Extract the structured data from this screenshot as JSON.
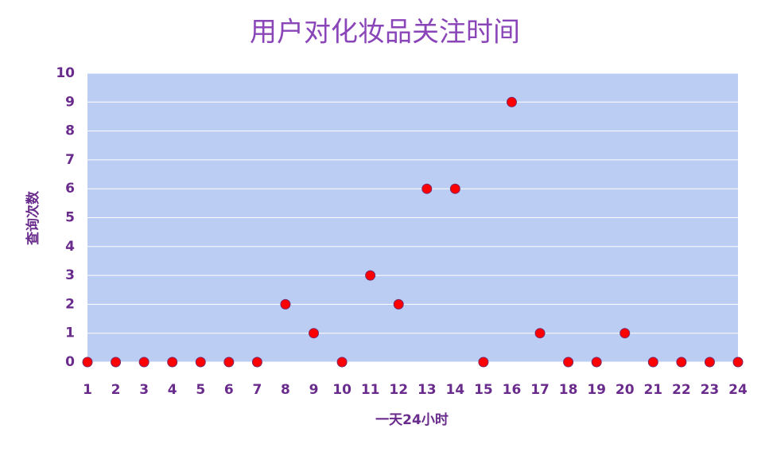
{
  "chart_data": {
    "type": "scatter",
    "title": "用户对化妆品关注时间",
    "x_label": "一天24小时",
    "y_label": "查询次数",
    "x": [
      1,
      2,
      3,
      4,
      5,
      6,
      7,
      8,
      9,
      10,
      11,
      12,
      13,
      14,
      15,
      16,
      17,
      18,
      19,
      20,
      21,
      22,
      23,
      24
    ],
    "values": [
      0,
      0,
      0,
      0,
      0,
      0,
      0,
      2,
      1,
      0,
      3,
      2,
      6,
      6,
      0,
      9,
      1,
      0,
      0,
      1,
      0,
      0,
      0,
      0
    ],
    "color": "#ff0000",
    "xlim": [
      1,
      24
    ],
    "xticks": [
      1,
      2,
      3,
      4,
      5,
      6,
      7,
      8,
      9,
      10,
      11,
      12,
      13,
      14,
      15,
      16,
      17,
      18,
      19,
      20,
      21,
      22,
      23,
      24
    ],
    "ylim": [
      0,
      10
    ],
    "yticks": [
      0,
      1,
      2,
      3,
      4,
      5,
      6,
      7,
      8,
      9,
      10
    ],
    "grid": true
  }
}
